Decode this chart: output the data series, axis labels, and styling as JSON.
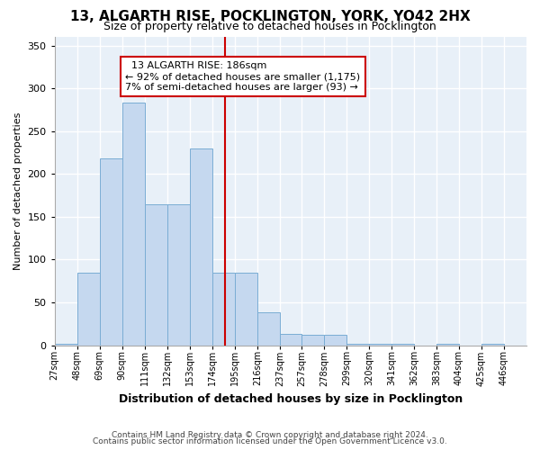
{
  "title": "13, ALGARTH RISE, POCKLINGTON, YORK, YO42 2HX",
  "subtitle": "Size of property relative to detached houses in Pocklington",
  "xlabel": "Distribution of detached houses by size in Pocklington",
  "ylabel": "Number of detached properties",
  "bar_color": "#c5d8ef",
  "bar_edge_color": "#7aadd4",
  "background_color": "#e8f0f8",
  "grid_color": "#ffffff",
  "categories": [
    "27sqm",
    "48sqm",
    "69sqm",
    "90sqm",
    "111sqm",
    "132sqm",
    "153sqm",
    "174sqm",
    "195sqm",
    "216sqm",
    "237sqm",
    "257sqm",
    "278sqm",
    "299sqm",
    "320sqm",
    "341sqm",
    "362sqm",
    "383sqm",
    "404sqm",
    "425sqm",
    "446sqm"
  ],
  "bin_edges": [
    27,
    48,
    69,
    90,
    111,
    132,
    153,
    174,
    195,
    216,
    237,
    257,
    278,
    299,
    320,
    341,
    362,
    383,
    404,
    425,
    446,
    467
  ],
  "values": [
    2,
    85,
    218,
    283,
    165,
    165,
    230,
    85,
    85,
    38,
    13,
    12,
    12,
    2,
    2,
    2,
    0,
    2,
    0,
    2,
    0
  ],
  "property_line_x": 186,
  "annotation_line1": "  13 ALGARTH RISE: 186sqm",
  "annotation_line2": "← 92% of detached houses are smaller (1,175)",
  "annotation_line3": "7% of semi-detached houses are larger (93) →",
  "annotation_box_color": "#ffffff",
  "annotation_border_color": "#cc0000",
  "vline_color": "#cc0000",
  "footer_line1": "Contains HM Land Registry data © Crown copyright and database right 2024.",
  "footer_line2": "Contains public sector information licensed under the Open Government Licence v3.0.",
  "ylim": [
    0,
    360
  ],
  "yticks": [
    0,
    50,
    100,
    150,
    200,
    250,
    300,
    350
  ],
  "fig_bg": "#ffffff"
}
